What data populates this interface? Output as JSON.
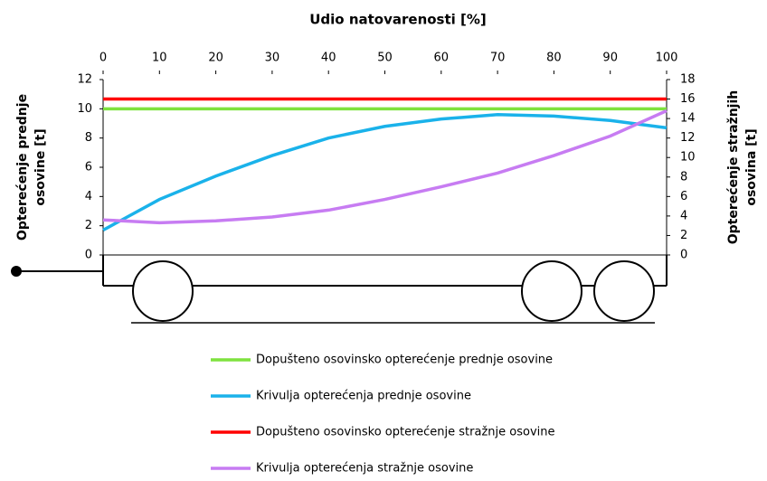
{
  "chart_data": {
    "type": "line",
    "x_label": "Udio natovarenosti [%]",
    "y_label": "Opterećenje prednje osovine [t]",
    "y2_label": "Opterećenje stražnjih osovina [t]",
    "x": [
      0,
      10,
      20,
      30,
      40,
      50,
      60,
      70,
      80,
      90,
      100
    ],
    "xlim": [
      0,
      100
    ],
    "xticks": [
      0,
      10,
      20,
      30,
      40,
      50,
      60,
      70,
      80,
      90,
      100
    ],
    "ylim": [
      0,
      12
    ],
    "yticks": [
      0,
      2,
      4,
      6,
      8,
      10,
      12
    ],
    "y2lim": [
      0,
      18
    ],
    "y2ticks": [
      0,
      2,
      4,
      6,
      8,
      10,
      12,
      14,
      16,
      18
    ],
    "grid": false,
    "series": [
      {
        "name": "Dopušteno osovinsko opterećenje prednje osovine",
        "color": "#7ee23e",
        "values": [
          10,
          10,
          10,
          10,
          10,
          10,
          10,
          10,
          10,
          10,
          10
        ]
      },
      {
        "name": "Krivulja opterećenja prednje osovine",
        "color": "#1ab2ea",
        "values": [
          1.7,
          3.8,
          5.4,
          6.8,
          8.0,
          8.8,
          9.3,
          9.6,
          9.5,
          9.2,
          8.7
        ]
      },
      {
        "name": "Dopušteno osovinsko opterećenje stražnje osovine",
        "color": "#ff0000",
        "axis": "y2",
        "values": [
          16,
          16,
          16,
          16,
          16,
          16,
          16,
          16,
          16,
          16,
          16
        ]
      },
      {
        "name": "Krivulja opterećenja stražnje osovine",
        "color": "#c77cf2",
        "axis": "y2",
        "values": [
          3.6,
          3.3,
          3.5,
          3.9,
          4.6,
          5.7,
          7.0,
          8.4,
          10.2,
          12.2,
          14.8
        ]
      }
    ]
  }
}
